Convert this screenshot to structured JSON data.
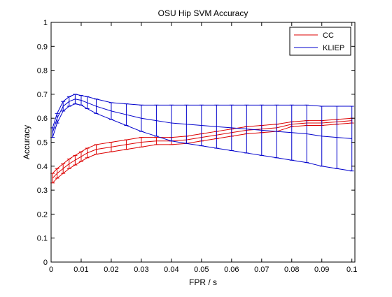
{
  "chart_data": {
    "type": "line",
    "title": "OSU Hip SVM Accuracy",
    "xlabel": "FPR / s",
    "ylabel": "Accuracy",
    "xlim": [
      0,
      0.101
    ],
    "ylim": [
      0,
      1
    ],
    "xticks": [
      0,
      0.01,
      0.02,
      0.03,
      0.04,
      0.05,
      0.06,
      0.07,
      0.08,
      0.09,
      0.1
    ],
    "xtick_labels": [
      "0",
      "0.01",
      "0.02",
      "0.03",
      "0.04",
      "0.05",
      "0.06",
      "0.07",
      "0.08",
      "0.09",
      "0.1"
    ],
    "yticks": [
      0,
      0.1,
      0.2,
      0.3,
      0.4,
      0.5,
      0.6,
      0.7,
      0.8,
      0.9,
      1
    ],
    "ytick_labels": [
      "0",
      "0.1",
      "0.2",
      "0.3",
      "0.4",
      "0.5",
      "0.6",
      "0.7",
      "0.8",
      "0.9",
      "1"
    ],
    "grid": false,
    "legend_position": "top-right",
    "error_bars": true,
    "series": [
      {
        "name": "CC",
        "color": "#dd0000",
        "x": [
          0.0005,
          0.002,
          0.004,
          0.006,
          0.008,
          0.01,
          0.012,
          0.015,
          0.02,
          0.025,
          0.03,
          0.035,
          0.04,
          0.045,
          0.05,
          0.055,
          0.06,
          0.065,
          0.07,
          0.075,
          0.08,
          0.085,
          0.09,
          0.095,
          0.1
        ],
        "values": [
          0.35,
          0.37,
          0.39,
          0.41,
          0.425,
          0.44,
          0.455,
          0.47,
          0.48,
          0.49,
          0.5,
          0.505,
          0.505,
          0.51,
          0.52,
          0.53,
          0.54,
          0.55,
          0.555,
          0.56,
          0.575,
          0.58,
          0.58,
          0.585,
          0.59
        ],
        "error": [
          0.02,
          0.02,
          0.02,
          0.02,
          0.02,
          0.02,
          0.02,
          0.02,
          0.02,
          0.02,
          0.02,
          0.015,
          0.015,
          0.015,
          0.015,
          0.015,
          0.015,
          0.015,
          0.015,
          0.015,
          0.01,
          0.01,
          0.01,
          0.01,
          0.01
        ]
      },
      {
        "name": "KLIEP",
        "color": "#0000cc",
        "x": [
          0.0005,
          0.002,
          0.004,
          0.006,
          0.008,
          0.01,
          0.012,
          0.015,
          0.02,
          0.025,
          0.03,
          0.035,
          0.04,
          0.045,
          0.05,
          0.055,
          0.06,
          0.065,
          0.07,
          0.075,
          0.08,
          0.085,
          0.09,
          0.095,
          0.1
        ],
        "values": [
          0.54,
          0.6,
          0.65,
          0.67,
          0.68,
          0.675,
          0.665,
          0.65,
          0.63,
          0.615,
          0.6,
          0.59,
          0.58,
          0.575,
          0.57,
          0.565,
          0.56,
          0.555,
          0.55,
          0.545,
          0.54,
          0.535,
          0.525,
          0.52,
          0.515
        ],
        "error": [
          0.02,
          0.02,
          0.02,
          0.02,
          0.02,
          0.02,
          0.025,
          0.03,
          0.035,
          0.045,
          0.055,
          0.065,
          0.075,
          0.08,
          0.085,
          0.09,
          0.095,
          0.1,
          0.105,
          0.11,
          0.115,
          0.12,
          0.125,
          0.13,
          0.135
        ]
      }
    ]
  }
}
